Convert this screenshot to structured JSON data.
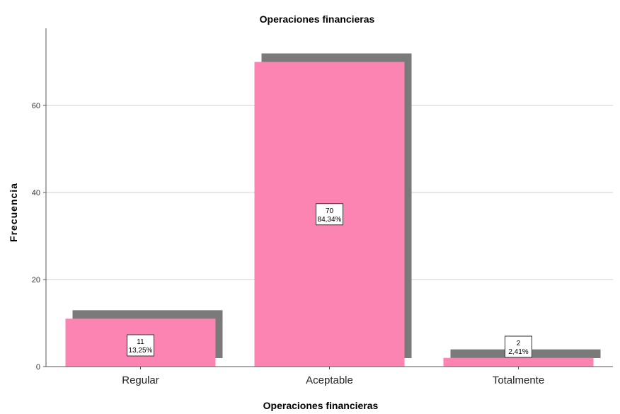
{
  "chart_data": {
    "type": "bar",
    "title": "Operaciones financieras",
    "xlabel": "Operaciones financieras",
    "ylabel": "Frecuencia",
    "categories": [
      "Regular",
      "Aceptable",
      "Totalmente"
    ],
    "values": [
      11,
      70,
      2
    ],
    "percent_labels": [
      "13,25%",
      "84,34%",
      "2,41%"
    ],
    "yticks": [
      0,
      20,
      40,
      60
    ],
    "ylim": [
      0,
      80
    ],
    "grid": true,
    "bar_color": "#fb84b3",
    "shadow_color": "#7a7a7a"
  }
}
